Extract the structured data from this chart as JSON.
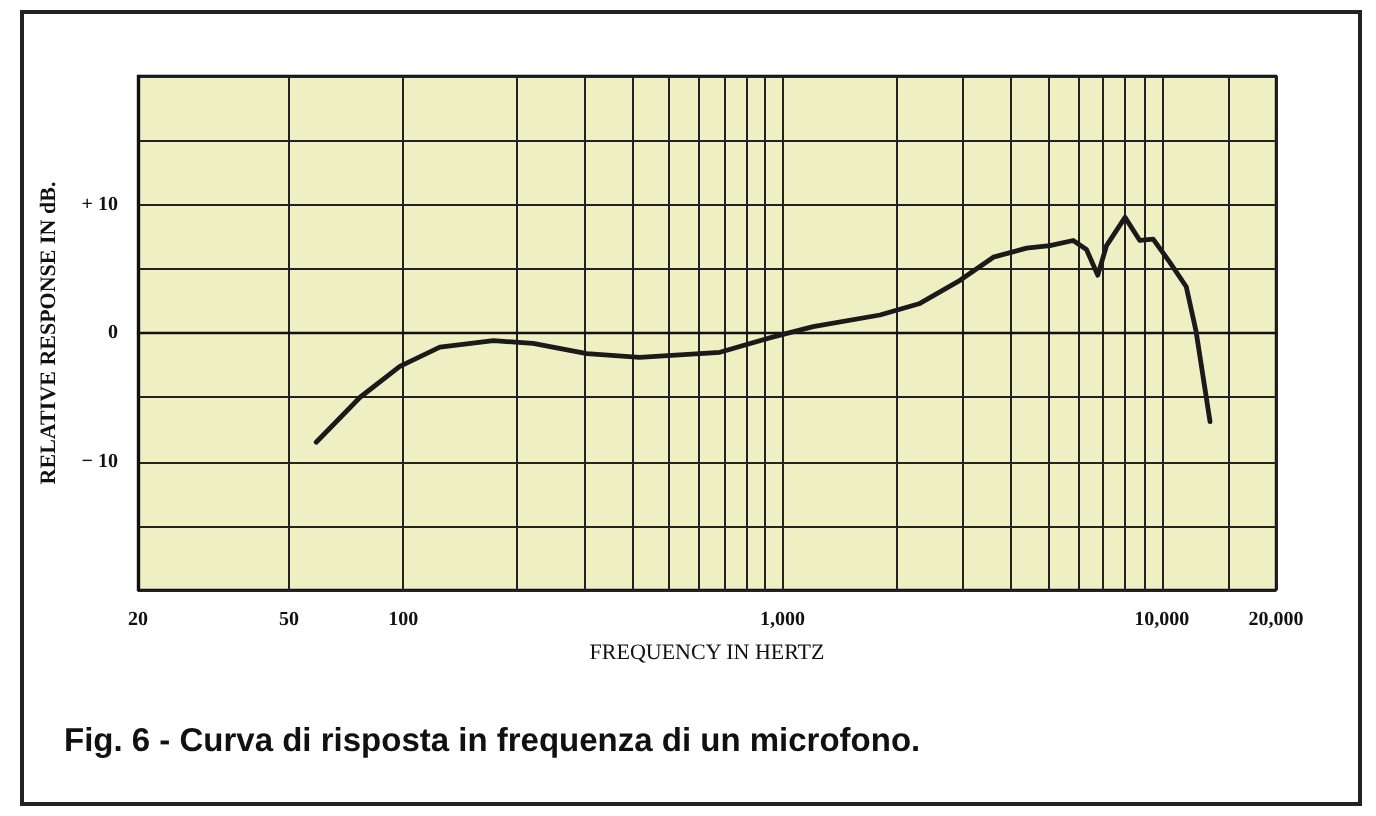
{
  "chart_data": {
    "type": "line",
    "xlabel": "FREQUENCY IN HERTZ",
    "ylabel": "RELATIVE RESPONSE IN dB.",
    "annotations": [
      "Fig. 6 - Curva di risposta in frequenza di un microfono."
    ],
    "log": "x",
    "grid": true,
    "marker": "none",
    "line_style": "solid",
    "xlim": [
      20,
      20000
    ],
    "xticks": [
      20,
      50,
      100,
      {
        "value": 200,
        "label": null
      },
      {
        "value": 300,
        "label": null
      },
      {
        "value": 400,
        "label": null
      },
      {
        "value": 500,
        "label": null
      },
      {
        "value": 600,
        "label": null
      },
      {
        "value": 700,
        "label": null
      },
      {
        "value": 800,
        "label": null
      },
      {
        "value": 900,
        "label": null
      },
      {
        "value": 1000,
        "label": "1,000"
      },
      {
        "value": 2000,
        "label": null
      },
      {
        "value": 3000,
        "label": null
      },
      {
        "value": 4000,
        "label": null
      },
      {
        "value": 5000,
        "label": null
      },
      {
        "value": 6000,
        "label": null
      },
      {
        "value": 7000,
        "label": null
      },
      {
        "value": 8000,
        "label": null
      },
      {
        "value": 9000,
        "label": null
      },
      {
        "value": 10000,
        "label": "10,000"
      },
      {
        "value": 15000,
        "label": null
      },
      {
        "value": 20000,
        "label": "20,000"
      }
    ],
    "ylim": [
      -20,
      20
    ],
    "yticks": [
      {
        "value": -20,
        "label": null
      },
      {
        "value": -15,
        "label": null
      },
      {
        "value": -10,
        "label": "− 10"
      },
      {
        "value": -5,
        "label": null
      },
      0,
      {
        "value": 5,
        "label": null
      },
      {
        "value": 10,
        "label": "+ 10"
      },
      {
        "value": 15,
        "label": null
      },
      {
        "value": 20,
        "label": null
      }
    ],
    "x": [
      59,
      77,
      98,
      125,
      173,
      220,
      305,
      420,
      605,
      684,
      946,
      1205,
      1807,
      2303,
      2938,
      3597,
      4400,
      5070,
      5840,
      6330,
      6780,
      7150,
      8000,
      8750,
      9490,
      10500,
      11600,
      12300,
      13400
    ],
    "series": [
      {
        "color": "#1a1a1a",
        "values": [
          -8.5,
          -5.0,
          -2.6,
          -1.1,
          -0.6,
          -0.8,
          -1.6,
          -1.9,
          -1.6,
          -1.5,
          -0.3,
          0.5,
          1.4,
          2.3,
          4.1,
          5.9,
          6.6,
          6.8,
          7.2,
          6.5,
          4.5,
          6.8,
          9.0,
          7.2,
          7.3,
          5.5,
          3.6,
          0.2,
          -6.9
        ]
      }
    ]
  }
}
